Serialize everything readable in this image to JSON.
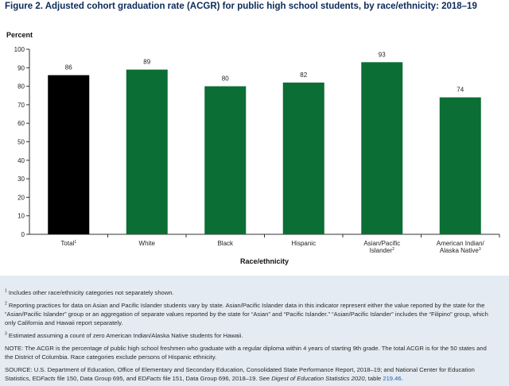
{
  "title": "Figure 2. Adjusted cohort graduation rate (ACGR) for public high school students, by race/ethnicity: 2018–19",
  "chart_data": {
    "type": "bar",
    "ylabel": "Percent",
    "xlabel": "Race/ethnicity",
    "ylim": [
      0,
      100
    ],
    "yticks": [
      0,
      10,
      20,
      30,
      40,
      50,
      60,
      70,
      80,
      90,
      100
    ],
    "grid": false,
    "categories": [
      {
        "lines": [
          "Total"
        ],
        "sup": "1"
      },
      {
        "lines": [
          "White"
        ],
        "sup": ""
      },
      {
        "lines": [
          "Black"
        ],
        "sup": ""
      },
      {
        "lines": [
          "Hispanic"
        ],
        "sup": ""
      },
      {
        "lines": [
          "Asian/Pacific",
          "Islander"
        ],
        "sup": "2"
      },
      {
        "lines": [
          "American Indian/",
          "Alaska Native"
        ],
        "sup": "3"
      }
    ],
    "values": [
      86,
      89,
      80,
      82,
      93,
      74
    ],
    "colors": [
      "#000000",
      "#0b6e35",
      "#0b6e35",
      "#0b6e35",
      "#0b6e35",
      "#0b6e35"
    ]
  },
  "notes": {
    "n1_sup": "1",
    "n1": "Includes other race/ethnicity categories not separately shown.",
    "n2_sup": "2",
    "n2_l1": "Reporting practices for data on Asian and Pacific Islander students vary by state. Asian/Pacific Islander data in this indicator represent either the value reported by the state for the",
    "n2_l2": "“Asian/Pacific Islander” group or an aggregation of separate values reported by the state for “Asian” and “Pacific Islander.” “Asian/Pacific Islander” includes the “Filipino” group, which",
    "n2_l3": "only California and Hawaii report separately.",
    "n3_sup": "3",
    "n3": "Estimated assuming a count of zero American Indian/Alaska Native students for Hawaii.",
    "note_l1": "NOTE: The ACGR is the percentage of public high school freshmen who graduate with a regular diploma within 4 years of starting 9th grade. The total ACGR is for the 50 states and",
    "note_l2": "the District of Columbia. Race categories exclude persons of Hispanic ethnicity.",
    "source_l1": "SOURCE: U.S. Department of Education, Office of Elementary and Secondary Education, Consolidated State Performance Report, 2018–19; and National Center for Education",
    "source_l2a": "Statistics, ED",
    "source_l2b": "Facts",
    "source_l2c": " file 150, Data Group 695, and ED",
    "source_l2d": "Facts",
    "source_l2e": " file 151, Data Group 696, 2018–19. See ",
    "source_l2f": "Digest of Education Statistics 2020",
    "source_l2g": ", table ",
    "source_link": "219.46",
    "source_l2h": "."
  }
}
